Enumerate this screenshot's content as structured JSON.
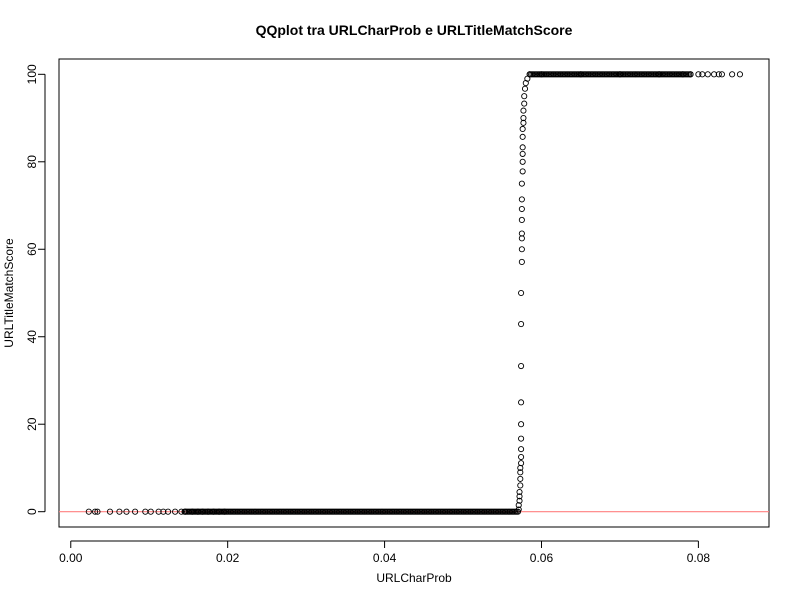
{
  "chart_data": {
    "type": "scatter",
    "title": "QQplot tra URLCharProb e URLTitleMatchScore",
    "xlabel": "URLCharProb",
    "ylabel": "URLTitleMatchScore",
    "xlim": [
      -0.0015,
      0.089
    ],
    "ylim": [
      -3.5,
      103.5
    ],
    "xticks": [
      0.0,
      0.02,
      0.04,
      0.06,
      0.08
    ],
    "xtick_labels": [
      "0.00",
      "0.02",
      "0.04",
      "0.06",
      "0.08"
    ],
    "yticks": [
      0,
      20,
      40,
      60,
      80,
      100
    ],
    "ytick_labels": [
      "0",
      "20",
      "40",
      "60",
      "80",
      "100"
    ],
    "grid": false,
    "marker": "open-circle",
    "marker_color": "#000000",
    "reference_line": {
      "type": "horizontal",
      "y": 0,
      "color": "#ff8080"
    },
    "series": [
      {
        "points": [
          [
            0.0023,
            0
          ],
          [
            0.0031,
            0
          ],
          [
            0.0034,
            0
          ],
          [
            0.005,
            0
          ],
          [
            0.0062,
            0
          ],
          [
            0.0071,
            0
          ],
          [
            0.0082,
            0
          ],
          [
            0.0095,
            0
          ],
          [
            0.0102,
            0
          ],
          [
            0.0112,
            0
          ],
          [
            0.0118,
            0
          ],
          [
            0.0124,
            0
          ],
          [
            0.0133,
            0
          ],
          [
            0.0141,
            0
          ],
          [
            0.0146,
            0
          ],
          [
            0.0155,
            0
          ],
          [
            0.0162,
            0
          ],
          [
            0.0168,
            0
          ],
          [
            0.0175,
            0
          ],
          [
            0.0182,
            0
          ],
          [
            0.0189,
            0
          ],
          [
            0.0196,
            0
          ],
          [
            0.0571,
            0.5
          ],
          [
            0.0571,
            1.5
          ],
          [
            0.0572,
            2.5
          ],
          [
            0.0572,
            3.5
          ],
          [
            0.0572,
            4.5
          ],
          [
            0.0573,
            6.0
          ],
          [
            0.0573,
            7.5
          ],
          [
            0.0573,
            9.0
          ],
          [
            0.0573,
            10.0
          ],
          [
            0.0574,
            11.1
          ],
          [
            0.0574,
            12.5
          ],
          [
            0.0574,
            14.3
          ],
          [
            0.0574,
            16.7
          ],
          [
            0.0574,
            20.0
          ],
          [
            0.0574,
            25.0
          ],
          [
            0.0574,
            33.3
          ],
          [
            0.0574,
            42.9
          ],
          [
            0.0574,
            50.0
          ],
          [
            0.0575,
            57.1
          ],
          [
            0.0575,
            60.0
          ],
          [
            0.0575,
            62.5
          ],
          [
            0.0575,
            63.6
          ],
          [
            0.0575,
            66.7
          ],
          [
            0.0575,
            69.2
          ],
          [
            0.0575,
            71.4
          ],
          [
            0.0575,
            75.0
          ],
          [
            0.0576,
            77.8
          ],
          [
            0.0576,
            80.0
          ],
          [
            0.0576,
            81.8
          ],
          [
            0.0576,
            83.3
          ],
          [
            0.0576,
            85.7
          ],
          [
            0.0576,
            87.5
          ],
          [
            0.0577,
            88.9
          ],
          [
            0.0577,
            90.0
          ],
          [
            0.0577,
            91.7
          ],
          [
            0.0578,
            93.3
          ],
          [
            0.0578,
            95.0
          ],
          [
            0.0579,
            96.7
          ],
          [
            0.058,
            98.0
          ],
          [
            0.0582,
            99.0
          ],
          [
            0.0585,
            100
          ],
          [
            0.06,
            100
          ],
          [
            0.065,
            100
          ],
          [
            0.07,
            100
          ],
          [
            0.075,
            100
          ],
          [
            0.078,
            100
          ],
          [
            0.079,
            100
          ],
          [
            0.08,
            100
          ],
          [
            0.0805,
            100
          ],
          [
            0.0812,
            100
          ],
          [
            0.082,
            100
          ],
          [
            0.0826,
            100
          ],
          [
            0.083,
            100
          ],
          [
            0.0843,
            100
          ],
          [
            0.0853,
            100
          ]
        ]
      }
    ],
    "dense_segments": [
      {
        "x_range": [
          0.0145,
          0.057
        ],
        "y": 0
      },
      {
        "x_range": [
          0.0585,
          0.079
        ],
        "y": 100
      }
    ]
  }
}
